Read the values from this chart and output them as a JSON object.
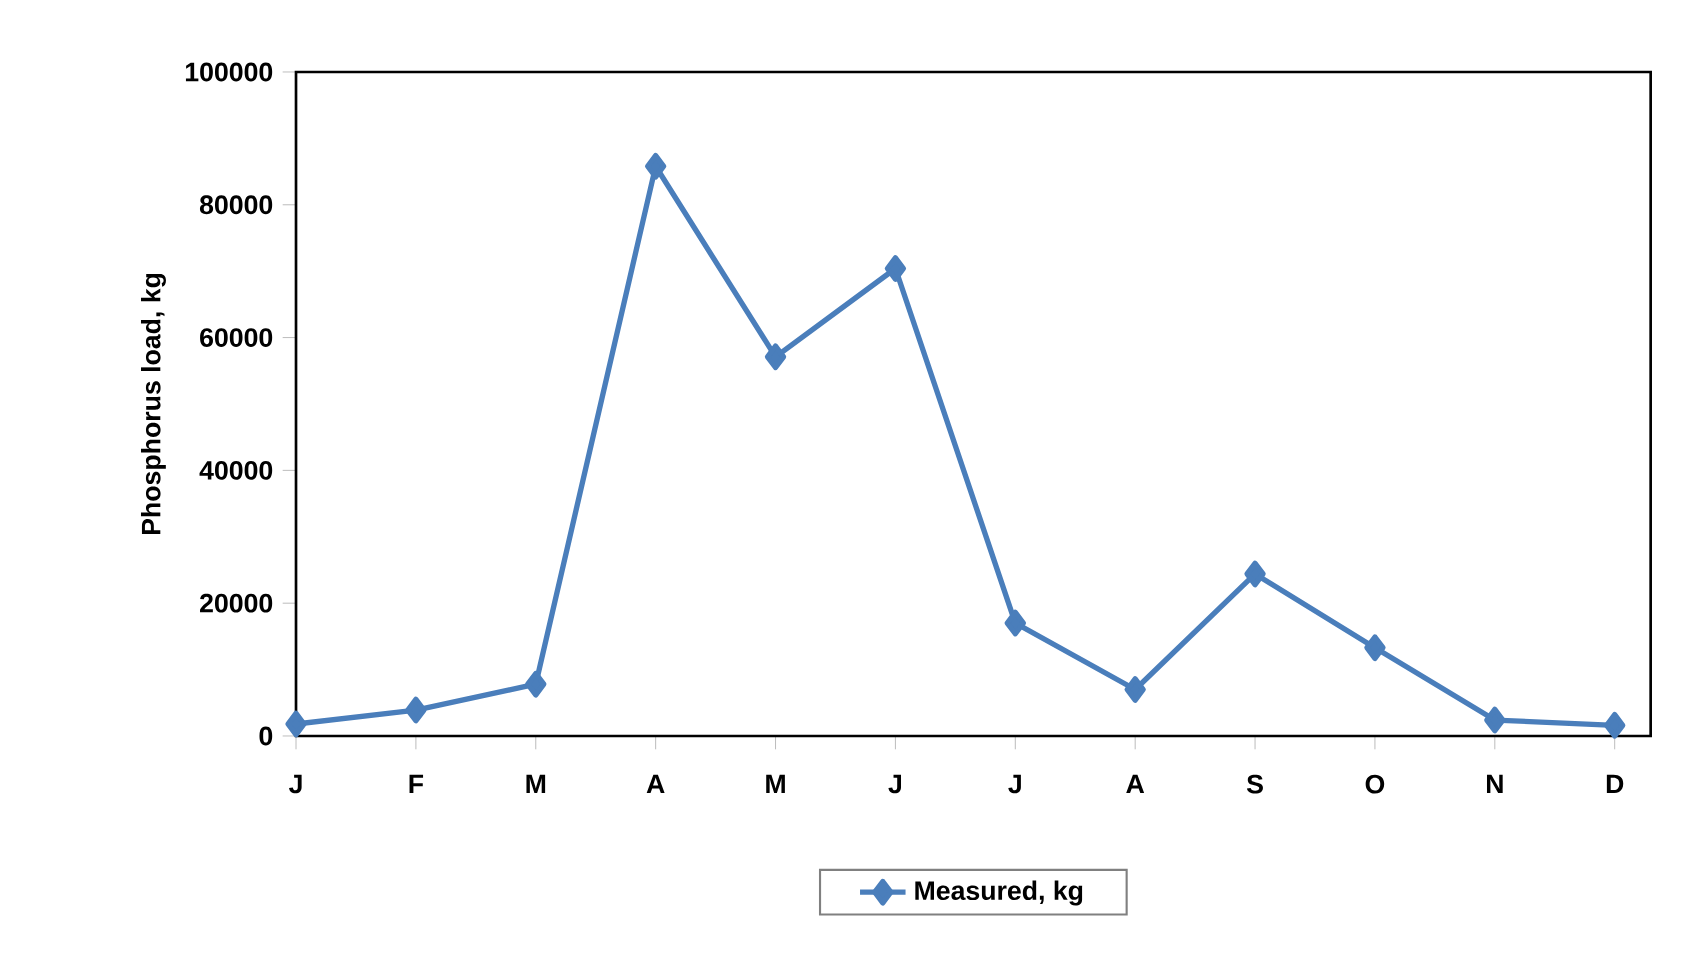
{
  "chart_data": {
    "type": "line",
    "ylabel": "Phosphorus load, kg",
    "categories": [
      "J",
      "F",
      "M",
      "A",
      "M",
      "J",
      "J",
      "A",
      "S",
      "O",
      "N",
      "D"
    ],
    "series": [
      {
        "name": "Measured, kg",
        "color": "#4a7ebb",
        "values": [
          1800,
          3900,
          7800,
          85800,
          57100,
          70400,
          17000,
          7000,
          24400,
          13300,
          2400,
          1600
        ]
      }
    ],
    "ylim": [
      0,
      100000
    ],
    "yticks": [
      0,
      20000,
      40000,
      60000,
      80000,
      100000
    ],
    "grid": false,
    "legend": "bottom",
    "marker": "diamond",
    "line_style": "solid"
  }
}
